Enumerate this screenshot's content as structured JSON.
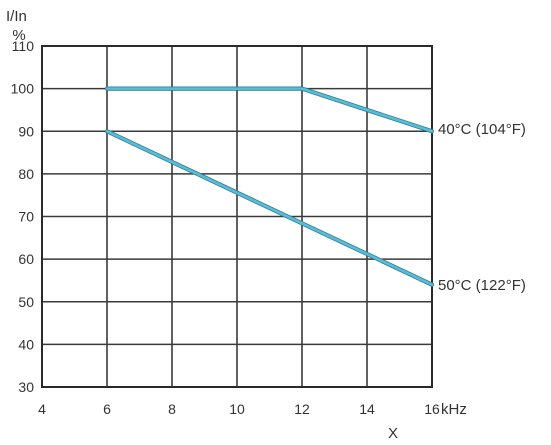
{
  "chart_data": {
    "type": "line",
    "xlabel": "X",
    "x_unit": "kHz",
    "ylabel": "I/In",
    "y_unit": "%",
    "xlim": [
      4,
      16
    ],
    "ylim": [
      30,
      110
    ],
    "x_ticks": [
      4,
      6,
      8,
      10,
      12,
      14,
      16
    ],
    "y_ticks": [
      30,
      40,
      50,
      60,
      70,
      80,
      90,
      100,
      110
    ],
    "grid": true,
    "series_color": "#5bbcd6",
    "series": [
      {
        "name": "40°C (104°F)",
        "points": [
          [
            6,
            100
          ],
          [
            12,
            100
          ],
          [
            16,
            90
          ]
        ]
      },
      {
        "name": "50°C (122°F)",
        "points": [
          [
            6,
            90
          ],
          [
            16,
            54
          ]
        ]
      }
    ]
  }
}
